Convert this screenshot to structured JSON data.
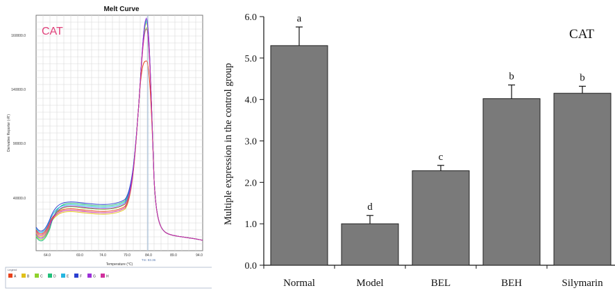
{
  "melt_curve": {
    "title": "Melt Curve",
    "gene_label": "CAT",
    "y_axis_label": "Derivative Reporter (-R')",
    "x_axis_label": "Temperature (°C)",
    "tm_label": "Tm: 83.36",
    "y_tick_labels": [
      "160000.0",
      "140000.0",
      "90000.0",
      "40000.0"
    ],
    "x_tick_labels": [
      "64.0",
      "69.0",
      "74.0",
      "79.0",
      "84.0",
      "89.0",
      "94.0"
    ],
    "legend_title": "Legend",
    "legend": [
      {
        "label": "A",
        "color": "#e8431c"
      },
      {
        "label": "B",
        "color": "#e0c01a"
      },
      {
        "label": "C",
        "color": "#8fd22c"
      },
      {
        "label": "D",
        "color": "#22c07a"
      },
      {
        "label": "E",
        "color": "#25b6e0"
      },
      {
        "label": "F",
        "color": "#2a3fd0"
      },
      {
        "label": "G",
        "color": "#9b30d8"
      },
      {
        "label": "H",
        "color": "#d0309c"
      }
    ]
  },
  "chart_data": {
    "type": "bar",
    "title": "CAT",
    "ylabel": "Multiple expression in the control group",
    "xlabel": "",
    "categories": [
      "Normal",
      "Model",
      "BEL",
      "BEH",
      "Silymarin"
    ],
    "values": [
      5.3,
      1.0,
      2.28,
      4.02,
      4.15
    ],
    "errors": [
      0.45,
      0.2,
      0.13,
      0.33,
      0.17
    ],
    "significance": [
      "a",
      "d",
      "c",
      "b",
      "b"
    ],
    "ylim": [
      0,
      6
    ],
    "y_ticks": [
      "0.0",
      "1.0",
      "2.0",
      "3.0",
      "4.0",
      "5.0",
      "6.0"
    ],
    "bar_color": "#7a7a7a",
    "grid": false
  }
}
